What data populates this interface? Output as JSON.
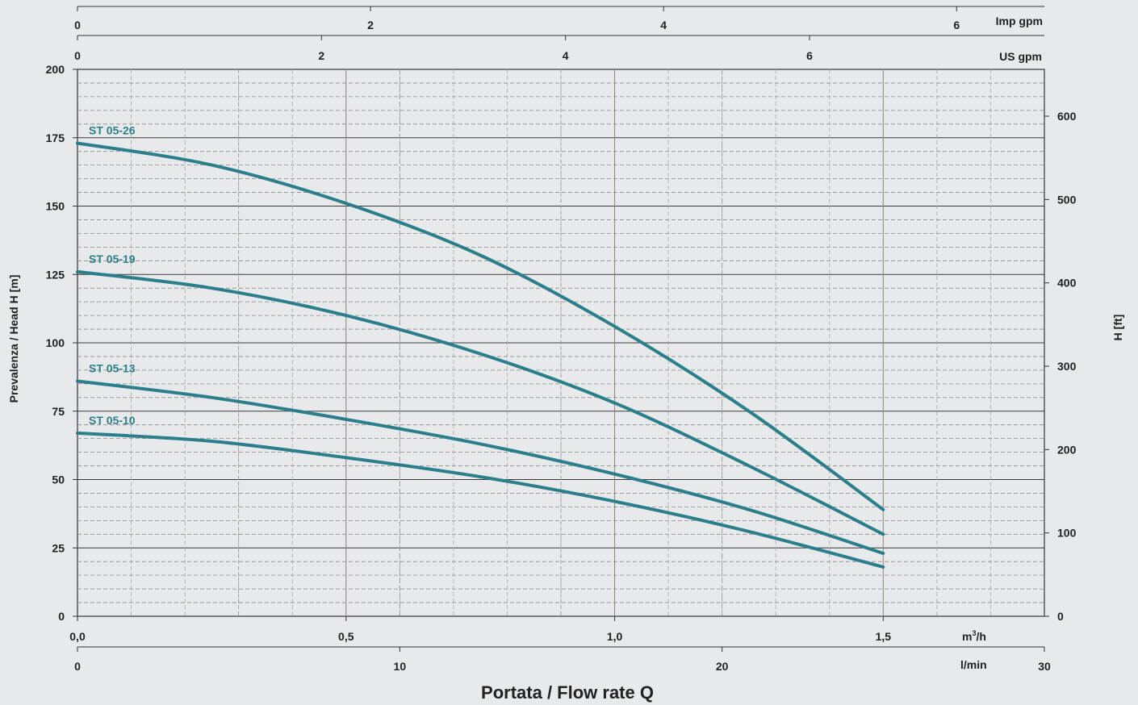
{
  "chart_data": {
    "type": "line",
    "title": "",
    "xlabel": "Portata / Flow rate Q",
    "ylabel": "Prevalenza / Head H [m]",
    "ylabel_right": "H [ft]",
    "xlim": [
      0,
      1.8
    ],
    "ylim": [
      0,
      200
    ],
    "grid": true,
    "x_unit": "m3/h",
    "x_ticks": [
      {
        "value": 0,
        "label": "0,0"
      },
      {
        "value": 0.5,
        "label": "0,5"
      },
      {
        "value": 1.0,
        "label": "1,0"
      },
      {
        "value": 1.5,
        "label": "1,5"
      }
    ],
    "y_ticks": [
      0,
      25,
      50,
      75,
      100,
      125,
      150,
      175,
      200
    ],
    "lmin_axis": {
      "unit": "l/min",
      "ticks": [
        0,
        10,
        20,
        30
      ]
    },
    "us_gpm_axis": {
      "unit": "US gpm",
      "ticks": [
        0,
        2,
        4,
        6
      ]
    },
    "imp_gpm_axis": {
      "unit": "Imp gpm",
      "ticks": [
        0,
        2,
        4,
        6
      ]
    },
    "ft_axis": {
      "unit": "H [ft]",
      "ticks": [
        0,
        100,
        200,
        300,
        400,
        500,
        600
      ]
    },
    "line_color": "#2b7f8a",
    "label_color": "#2e8088",
    "series": [
      {
        "name": "ST 05-26",
        "x": [
          0,
          0.25,
          0.5,
          0.75,
          1.0,
          1.25,
          1.5
        ],
        "y": [
          173,
          165,
          151,
          132,
          106,
          75,
          39
        ]
      },
      {
        "name": "ST 05-19",
        "x": [
          0,
          0.25,
          0.5,
          0.75,
          1.0,
          1.25,
          1.5
        ],
        "y": [
          126,
          120,
          110,
          96,
          78,
          55,
          30
        ]
      },
      {
        "name": "ST 05-13",
        "x": [
          0,
          0.25,
          0.5,
          0.75,
          1.0,
          1.25,
          1.5
        ],
        "y": [
          86,
          80,
          72,
          63,
          52,
          39,
          23
        ]
      },
      {
        "name": "ST 05-10",
        "x": [
          0,
          0.25,
          0.5,
          0.75,
          1.0,
          1.25,
          1.5
        ],
        "y": [
          67,
          64,
          58,
          51,
          42,
          31,
          18
        ]
      }
    ]
  }
}
